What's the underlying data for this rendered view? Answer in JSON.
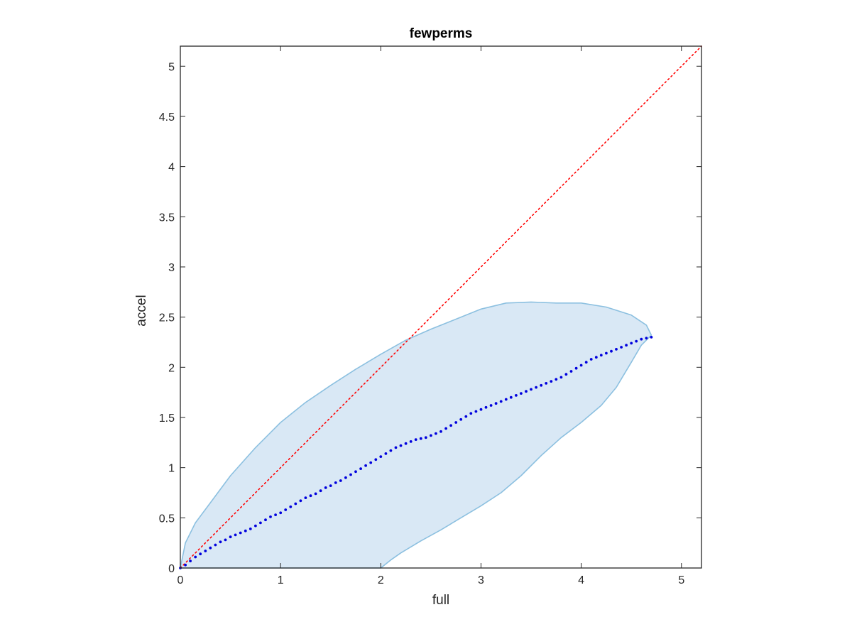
{
  "chart_data": {
    "type": "scatter",
    "title": "fewperms",
    "xlabel": "full",
    "ylabel": "accel",
    "xlim": [
      0,
      5.2
    ],
    "ylim": [
      0,
      5.2
    ],
    "grid": false,
    "x_ticks": [
      0,
      1,
      2,
      3,
      4,
      5
    ],
    "x_tick_labels": [
      "0",
      "1",
      "2",
      "3",
      "4",
      "5"
    ],
    "y_ticks": [
      0,
      0.5,
      1,
      1.5,
      2,
      2.5,
      3,
      3.5,
      4,
      4.5,
      5
    ],
    "y_tick_labels": [
      "0",
      "0.5",
      "1",
      "1.5",
      "2",
      "2.5",
      "3",
      "3.5",
      "4",
      "4.5",
      "5"
    ],
    "reference_line": {
      "from": [
        0,
        0
      ],
      "to": [
        5.2,
        5.2
      ],
      "color": "#ff0000",
      "style": "dotted"
    },
    "region": {
      "fill": "#d9e8f5",
      "stroke": "#8cc0e0",
      "upper": [
        [
          0,
          0
        ],
        [
          0.05,
          0.25
        ],
        [
          0.15,
          0.45
        ],
        [
          0.3,
          0.65
        ],
        [
          0.5,
          0.92
        ],
        [
          0.75,
          1.2
        ],
        [
          1.0,
          1.45
        ],
        [
          1.25,
          1.65
        ],
        [
          1.5,
          1.82
        ],
        [
          1.75,
          1.98
        ],
        [
          2.0,
          2.13
        ],
        [
          2.25,
          2.27
        ],
        [
          2.5,
          2.38
        ],
        [
          2.75,
          2.48
        ],
        [
          3.0,
          2.58
        ],
        [
          3.25,
          2.64
        ],
        [
          3.5,
          2.65
        ],
        [
          3.75,
          2.64
        ],
        [
          4.0,
          2.64
        ],
        [
          4.25,
          2.6
        ],
        [
          4.5,
          2.52
        ],
        [
          4.65,
          2.42
        ],
        [
          4.7,
          2.32
        ]
      ],
      "lower": [
        [
          4.7,
          2.32
        ],
        [
          4.6,
          2.22
        ],
        [
          4.5,
          2.05
        ],
        [
          4.35,
          1.8
        ],
        [
          4.2,
          1.62
        ],
        [
          4.0,
          1.45
        ],
        [
          3.8,
          1.3
        ],
        [
          3.6,
          1.12
        ],
        [
          3.4,
          0.92
        ],
        [
          3.2,
          0.75
        ],
        [
          3.0,
          0.62
        ],
        [
          2.8,
          0.5
        ],
        [
          2.6,
          0.38
        ],
        [
          2.4,
          0.27
        ],
        [
          2.2,
          0.15
        ],
        [
          2.1,
          0.08
        ],
        [
          2.0,
          0
        ]
      ]
    },
    "series": [
      {
        "color": "#0000dd",
        "x": [
          0,
          0.05,
          0.1,
          0.15,
          0.2,
          0.25,
          0.3,
          0.35,
          0.4,
          0.45,
          0.5,
          0.55,
          0.6,
          0.65,
          0.7,
          0.75,
          0.8,
          0.85,
          0.9,
          0.95,
          1.0,
          1.05,
          1.1,
          1.15,
          1.2,
          1.25,
          1.3,
          1.35,
          1.4,
          1.45,
          1.5,
          1.55,
          1.6,
          1.65,
          1.7,
          1.75,
          1.8,
          1.85,
          1.9,
          1.95,
          2.0,
          2.05,
          2.1,
          2.15,
          2.2,
          2.25,
          2.3,
          2.35,
          2.4,
          2.45,
          2.5,
          2.55,
          2.6,
          2.65,
          2.7,
          2.75,
          2.8,
          2.85,
          2.9,
          2.95,
          3.0,
          3.05,
          3.1,
          3.15,
          3.2,
          3.25,
          3.3,
          3.35,
          3.4,
          3.45,
          3.5,
          3.55,
          3.6,
          3.65,
          3.7,
          3.75,
          3.8,
          3.85,
          3.9,
          3.95,
          4.0,
          4.05,
          4.1,
          4.15,
          4.2,
          4.25,
          4.3,
          4.35,
          4.4,
          4.45,
          4.5,
          4.55,
          4.6,
          4.65,
          4.7
        ],
        "y": [
          0,
          0.03,
          0.07,
          0.11,
          0.14,
          0.17,
          0.2,
          0.23,
          0.26,
          0.28,
          0.31,
          0.33,
          0.35,
          0.37,
          0.39,
          0.42,
          0.45,
          0.48,
          0.51,
          0.53,
          0.55,
          0.58,
          0.61,
          0.64,
          0.67,
          0.7,
          0.72,
          0.74,
          0.77,
          0.8,
          0.82,
          0.85,
          0.87,
          0.9,
          0.93,
          0.96,
          0.99,
          1.02,
          1.05,
          1.08,
          1.11,
          1.14,
          1.17,
          1.2,
          1.22,
          1.24,
          1.26,
          1.28,
          1.29,
          1.3,
          1.32,
          1.34,
          1.36,
          1.39,
          1.42,
          1.45,
          1.48,
          1.51,
          1.54,
          1.56,
          1.58,
          1.6,
          1.62,
          1.64,
          1.66,
          1.68,
          1.7,
          1.72,
          1.74,
          1.76,
          1.78,
          1.8,
          1.82,
          1.84,
          1.86,
          1.88,
          1.9,
          1.93,
          1.96,
          1.99,
          2.02,
          2.05,
          2.08,
          2.1,
          2.12,
          2.14,
          2.16,
          2.18,
          2.2,
          2.22,
          2.24,
          2.26,
          2.28,
          2.29,
          2.3
        ]
      }
    ]
  }
}
